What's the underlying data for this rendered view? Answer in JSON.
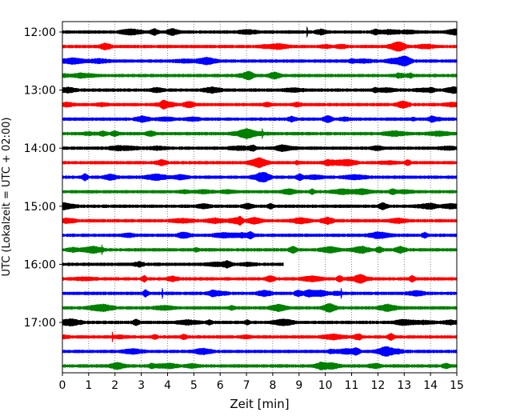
{
  "chart_data": {
    "type": "line",
    "title": "",
    "xlabel": "Zeit  [min]",
    "ylabel": "UTC (Lokalzeit = UTC + 02:00)",
    "xlim": [
      0,
      15
    ],
    "x_ticks": [
      0,
      1,
      2,
      3,
      4,
      5,
      6,
      7,
      8,
      9,
      10,
      11,
      12,
      13,
      14,
      15
    ],
    "grid": "vertical dotted at each minute",
    "legend": "none",
    "y_tick_labels": [
      "12:00",
      "13:00",
      "14:00",
      "15:00",
      "16:00",
      "17:00"
    ],
    "trace_interval_minutes": 15,
    "series_colors": [
      "#000000",
      "#ff0000",
      "#0000ff",
      "#008000"
    ],
    "traces": [
      {
        "start": "12:00",
        "color": "#000000",
        "duration_min": 15
      },
      {
        "start": "12:15",
        "color": "#ff0000",
        "duration_min": 15
      },
      {
        "start": "12:30",
        "color": "#0000ff",
        "duration_min": 15
      },
      {
        "start": "12:45",
        "color": "#008000",
        "duration_min": 15
      },
      {
        "start": "13:00",
        "color": "#000000",
        "duration_min": 15
      },
      {
        "start": "13:15",
        "color": "#ff0000",
        "duration_min": 15
      },
      {
        "start": "13:30",
        "color": "#0000ff",
        "duration_min": 15
      },
      {
        "start": "13:45",
        "color": "#008000",
        "duration_min": 15
      },
      {
        "start": "14:00",
        "color": "#000000",
        "duration_min": 15
      },
      {
        "start": "14:15",
        "color": "#ff0000",
        "duration_min": 15
      },
      {
        "start": "14:30",
        "color": "#0000ff",
        "duration_min": 15
      },
      {
        "start": "14:45",
        "color": "#008000",
        "duration_min": 15
      },
      {
        "start": "15:00",
        "color": "#000000",
        "duration_min": 15
      },
      {
        "start": "15:15",
        "color": "#ff0000",
        "duration_min": 15
      },
      {
        "start": "15:30",
        "color": "#0000ff",
        "duration_min": 15
      },
      {
        "start": "15:45",
        "color": "#008000",
        "duration_min": 15
      },
      {
        "start": "16:00",
        "color": "#000000",
        "duration_min": 8.4
      },
      {
        "start": "16:15",
        "color": "#ff0000",
        "duration_min": 15
      },
      {
        "start": "16:30",
        "color": "#0000ff",
        "duration_min": 15
      },
      {
        "start": "16:45",
        "color": "#008000",
        "duration_min": 15
      },
      {
        "start": "17:00",
        "color": "#000000",
        "duration_min": 15
      },
      {
        "start": "17:15",
        "color": "#ff0000",
        "duration_min": 15
      },
      {
        "start": "17:30",
        "color": "#0000ff",
        "duration_min": 15
      },
      {
        "start": "17:45",
        "color": "#008000",
        "duration_min": 15
      }
    ],
    "notable_spikes": [
      {
        "trace": "12:00",
        "minute": 9.3
      },
      {
        "trace": "13:45",
        "minute": 7.6
      },
      {
        "trace": "15:45",
        "minute": 1.5
      },
      {
        "trace": "16:30",
        "minute": 3.8
      },
      {
        "trace": "16:30",
        "minute": 10.6
      },
      {
        "trace": "17:15",
        "minute": 1.9
      }
    ]
  }
}
